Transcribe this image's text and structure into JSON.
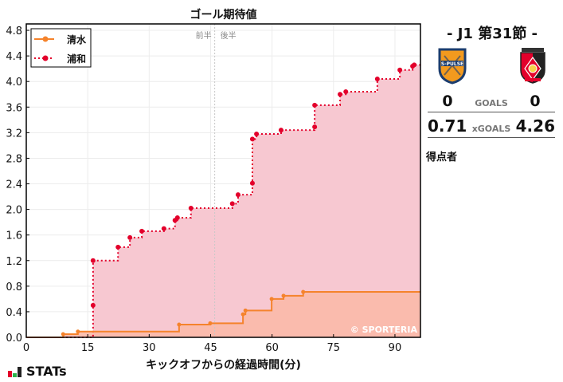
{
  "chart_data": {
    "type": "line",
    "title": "ゴール期待値",
    "xlabel": "キックオフからの経過時間(分)",
    "ylabel": "",
    "xlim": [
      0,
      96.3
    ],
    "ylim": [
      0,
      4.85
    ],
    "xticks": [
      0,
      15,
      30,
      45,
      60,
      75,
      90
    ],
    "yticks": [
      0.0,
      0.4,
      0.8,
      1.2,
      1.6,
      2.0,
      2.4,
      2.8,
      3.2,
      3.6,
      4.0,
      4.4,
      4.8
    ],
    "grid": true,
    "legend_position": "upper left",
    "step": true,
    "half_marker": {
      "x": 46,
      "labels": [
        "前半",
        "後半"
      ]
    },
    "watermark": "© SPORTERIA",
    "series": [
      {
        "name": "清水",
        "color": "#f5832c",
        "line_style": "solid",
        "fill": "#f9b9a9",
        "points": [
          [
            9.0,
            0.05
          ],
          [
            12.6,
            0.09
          ],
          [
            37.3,
            0.2
          ],
          [
            44.9,
            0.22
          ],
          [
            52.9,
            0.36
          ],
          [
            53.5,
            0.42
          ],
          [
            59.9,
            0.6
          ],
          [
            62.8,
            0.65
          ],
          [
            67.6,
            0.71
          ]
        ],
        "final": 0.71
      },
      {
        "name": "浦和",
        "color": "#e3002b",
        "line_style": "dotted",
        "fill": "#f7c8d1",
        "points": [
          [
            16.3,
            0.5
          ],
          [
            16.3,
            1.2
          ],
          [
            22.4,
            1.41
          ],
          [
            25.3,
            1.56
          ],
          [
            28.2,
            1.66
          ],
          [
            33.6,
            1.7
          ],
          [
            36.3,
            1.83
          ],
          [
            36.9,
            1.87
          ],
          [
            40.2,
            2.02
          ],
          [
            50.3,
            2.09
          ],
          [
            51.7,
            2.23
          ],
          [
            55.2,
            2.41
          ],
          [
            55.2,
            3.1
          ],
          [
            56.2,
            3.18
          ],
          [
            62.2,
            3.24
          ],
          [
            70.4,
            3.29
          ],
          [
            70.4,
            3.63
          ],
          [
            76.6,
            3.8
          ],
          [
            78.0,
            3.84
          ],
          [
            85.7,
            4.04
          ],
          [
            91.2,
            4.18
          ],
          [
            94.3,
            4.24
          ],
          [
            94.7,
            4.26
          ]
        ],
        "final": 4.26
      }
    ]
  },
  "match": {
    "round": "- J1 第31節 -",
    "home": {
      "name": "清水",
      "logo": "s-pulse-crest-icon",
      "goals": "0",
      "xg": "0.71",
      "color": "#f5832c"
    },
    "away": {
      "name": "浦和",
      "logo": "urawa-reds-crest-icon",
      "goals": "0",
      "xg": "4.26",
      "color": "#e3002b"
    },
    "goals_label": "GOALS",
    "xg_label": "xGOALS",
    "scorers_label": "得点者"
  },
  "brand": {
    "label": "STATs"
  }
}
